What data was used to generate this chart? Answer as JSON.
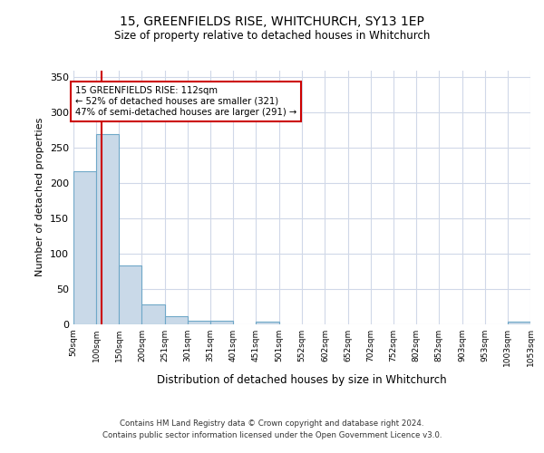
{
  "title": "15, GREENFIELDS RISE, WHITCHURCH, SY13 1EP",
  "subtitle": "Size of property relative to detached houses in Whitchurch",
  "xlabel": "Distribution of detached houses by size in Whitchurch",
  "ylabel": "Number of detached properties",
  "bar_left_edges": [
    50,
    100,
    150,
    200,
    251,
    301,
    351,
    401,
    451,
    501,
    552,
    602,
    652,
    702,
    752,
    802,
    852,
    903,
    953,
    1003
  ],
  "bar_widths": [
    50,
    50,
    50,
    51,
    50,
    50,
    50,
    50,
    50,
    51,
    50,
    50,
    50,
    50,
    50,
    50,
    51,
    50,
    50,
    50
  ],
  "bar_heights": [
    217,
    270,
    83,
    28,
    11,
    4,
    4,
    0,
    3,
    0,
    0,
    0,
    0,
    0,
    0,
    0,
    0,
    0,
    0,
    3
  ],
  "bar_color": "#c9d9e8",
  "bar_edge_color": "#6fa8c8",
  "grid_color": "#d0d8e8",
  "red_line_x": 112,
  "red_line_color": "#cc0000",
  "annotation_text": "15 GREENFIELDS RISE: 112sqm\n← 52% of detached houses are smaller (321)\n47% of semi-detached houses are larger (291) →",
  "annotation_box_color": "#cc0000",
  "xlim": [
    50,
    1053
  ],
  "ylim": [
    0,
    360
  ],
  "xtick_labels": [
    "50sqm",
    "100sqm",
    "150sqm",
    "200sqm",
    "251sqm",
    "301sqm",
    "351sqm",
    "401sqm",
    "451sqm",
    "501sqm",
    "552sqm",
    "602sqm",
    "652sqm",
    "702sqm",
    "752sqm",
    "802sqm",
    "852sqm",
    "903sqm",
    "953sqm",
    "1003sqm",
    "1053sqm"
  ],
  "xtick_positions": [
    50,
    100,
    150,
    200,
    251,
    301,
    351,
    401,
    451,
    501,
    552,
    602,
    652,
    702,
    752,
    802,
    852,
    903,
    953,
    1003,
    1053
  ],
  "ytick_positions": [
    0,
    50,
    100,
    150,
    200,
    250,
    300,
    350
  ],
  "footer_line1": "Contains HM Land Registry data © Crown copyright and database right 2024.",
  "footer_line2": "Contains public sector information licensed under the Open Government Licence v3.0."
}
